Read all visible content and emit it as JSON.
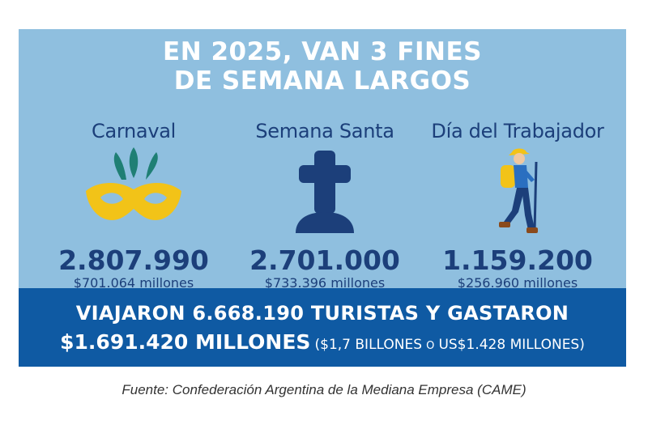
{
  "title": {
    "line1": "EN 2025, VAN 3 FINES",
    "line2": "DE SEMANA LARGOS"
  },
  "weekends": [
    {
      "name": "Carnaval",
      "icon": "carnival-mask-icon",
      "travelers": "2.807.990",
      "spending": "$701.064 millones"
    },
    {
      "name": "Semana Santa",
      "icon": "cross-icon",
      "travelers": "2.701.000",
      "spending": "$733.396 millones"
    },
    {
      "name": "Día del Trabajador",
      "icon": "hiker-icon",
      "travelers": "1.159.200",
      "spending": "$256.960 millones"
    }
  ],
  "summary": {
    "line1": "VIAJARON 6.668.190 TURISTAS Y GASTARON",
    "total": "$1.691.420 MILLONES",
    "paren_open": "($1,7 BILLONES",
    "connector": "O",
    "paren_close": "US$1.428 MILLONES)"
  },
  "source": "Fuente: Confederación Argentina de la Mediana Empresa (CAME)",
  "colors": {
    "panel": "#8fbfdf",
    "band": "#0f5aa3",
    "text_dark": "#1c3f7a",
    "mask_yellow": "#f2c318",
    "feather_green": "#1f7f74"
  }
}
